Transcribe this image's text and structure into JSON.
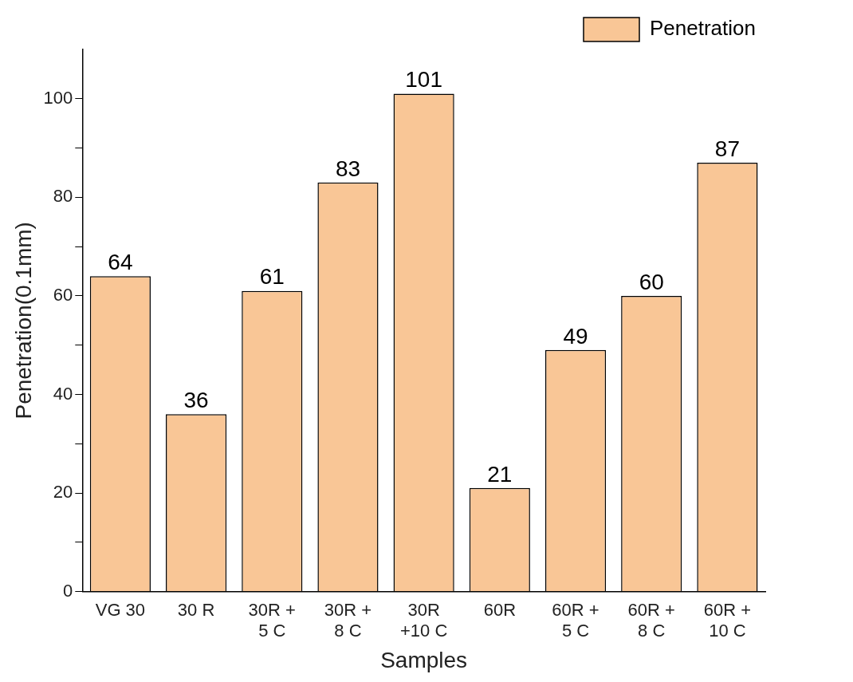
{
  "chart_data": {
    "type": "bar",
    "xlabel": "Samples",
    "ylabel": "Penetration(0.1mm)",
    "categories": [
      "VG 30",
      "30 R",
      "30R +\n5 C",
      "30R +\n8 C",
      "30R\n+10 C",
      "60R",
      "60R +\n5 C",
      "60R +\n8 C",
      "60R +\n10 C"
    ],
    "series": [
      {
        "name": "Penetration",
        "color": "#f9c696",
        "values": [
          64,
          36,
          61,
          83,
          101,
          21,
          49,
          60,
          87
        ]
      }
    ],
    "ylim": [
      0,
      110
    ],
    "yticks": [
      0,
      {
        "value": 10,
        "label": null
      },
      20,
      {
        "value": 30,
        "label": null
      },
      40,
      {
        "value": 50,
        "label": null
      },
      60,
      {
        "value": 70,
        "label": null
      },
      80,
      {
        "value": 90,
        "label": null
      },
      100
    ],
    "grid": false,
    "legend": "top right",
    "data_labels": true
  }
}
